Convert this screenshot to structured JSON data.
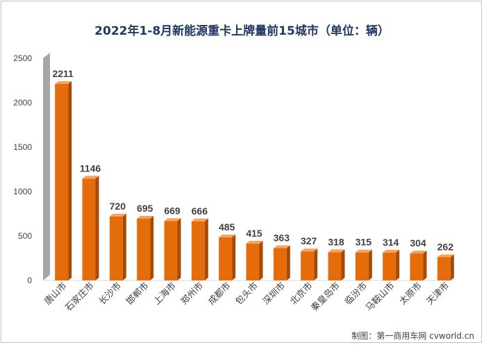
{
  "chart_data": {
    "type": "bar",
    "title": "2022年1-8月新能源重卡上牌量前15城市（单位：辆）",
    "xlabel": "",
    "ylabel": "",
    "ylim": [
      0,
      2500
    ],
    "yticks": [
      0,
      500,
      1000,
      1500,
      2000,
      2500
    ],
    "categories": [
      "唐山市",
      "石家庄市",
      "长沙市",
      "邯郸市",
      "上海市",
      "郑州市",
      "成都市",
      "包头市",
      "深圳市",
      "北京市",
      "秦皇岛市",
      "临汾市",
      "马鞍山市",
      "太原市",
      "天津市"
    ],
    "values": [
      2211,
      1146,
      720,
      695,
      669,
      666,
      485,
      415,
      363,
      327,
      318,
      315,
      314,
      304,
      262
    ],
    "grid": false,
    "legend": "none",
    "colors": {
      "bar_front": "#e46c0a",
      "bar_side": "#a84a04",
      "bar_top": "#f4a460",
      "wall": "#a6a6a6",
      "wall_side": "#7f7f7f",
      "title": "#1f3864",
      "axis_text": "#404040"
    }
  },
  "credit": "制图：第一商用车网 cvworld.cn"
}
